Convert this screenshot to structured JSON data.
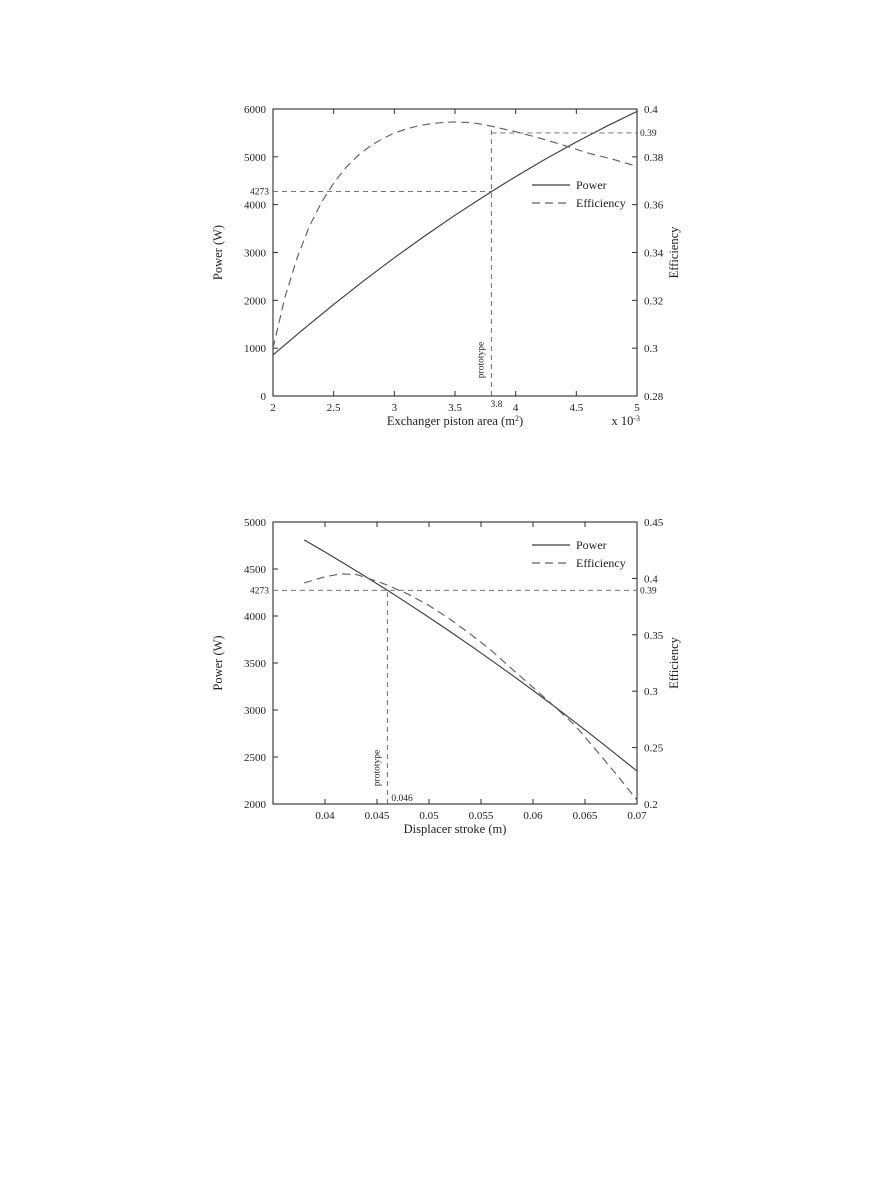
{
  "colors": {
    "axis": "#2f2f2f",
    "solid_line": "#3d3d3d",
    "dashed_line": "#606060",
    "text": "#1e1e1e",
    "background": "#ffffff"
  },
  "chart_data": [
    {
      "type": "line",
      "title": "",
      "xlabel_parts": [
        {
          "t": "Exchanger piston area (m"
        },
        {
          "t": "2",
          "sup": true
        },
        {
          "t": ")"
        }
      ],
      "x_scale_parts": [
        {
          "t": "x 10"
        },
        {
          "t": "-3",
          "sup": true
        }
      ],
      "ylabel_left": "Power (W)",
      "ylabel_right": "Efficiency",
      "xlim": [
        2,
        5
      ],
      "ylim_left": [
        0,
        6000
      ],
      "ylim_right": [
        0.28,
        0.4
      ],
      "grid": false,
      "legend_position": "right-middle",
      "xticks": {
        "values": [
          2,
          2.5,
          3,
          3.5,
          4,
          4.5,
          5
        ],
        "labels": [
          "2",
          "2.5",
          "3",
          "3.5",
          "4",
          "4.5",
          "5"
        ]
      },
      "yticks_left": {
        "values": [
          0,
          1000,
          2000,
          3000,
          4000,
          5000,
          6000
        ],
        "labels": [
          "0",
          "1000",
          "2000",
          "3000",
          "4000",
          "5000",
          "6000"
        ]
      },
      "yticks_right": {
        "values": [
          0.28,
          0.3,
          0.32,
          0.34,
          0.36,
          0.38,
          0.4
        ],
        "labels": [
          "0.28",
          "0.3",
          "0.32",
          "0.34",
          "0.36",
          "0.38",
          "0.4"
        ]
      },
      "series": [
        {
          "name": "Power",
          "axis": "left",
          "dash": null,
          "x": [
            2,
            2.25,
            2.5,
            2.75,
            3,
            3.25,
            3.5,
            3.8,
            4,
            4.25,
            4.5,
            4.75,
            5
          ],
          "y": [
            860,
            1395,
            1916,
            2413,
            2889,
            3344,
            3779,
            4273,
            4586,
            4958,
            5310,
            5640,
            5950
          ]
        },
        {
          "name": "Efficiency",
          "axis": "right",
          "dash": "8,5",
          "x": [
            2,
            2.1,
            2.2,
            2.3,
            2.4,
            2.5,
            2.6,
            2.7,
            2.8,
            2.9,
            3,
            3.1,
            3.2,
            3.3,
            3.4,
            3.5,
            3.6,
            3.7,
            3.8,
            3.9,
            4,
            4.2,
            4.4,
            4.6,
            4.8,
            5
          ],
          "y": [
            0.3,
            0.3215,
            0.338,
            0.351,
            0.361,
            0.369,
            0.3755,
            0.3805,
            0.3845,
            0.3875,
            0.39,
            0.3917,
            0.393,
            0.3938,
            0.3944,
            0.3946,
            0.3944,
            0.3938,
            0.3928,
            0.3917,
            0.3905,
            0.3878,
            0.3848,
            0.3815,
            0.379,
            0.376
          ]
        }
      ],
      "annotations": {
        "hlines": [
          {
            "axis": "left",
            "value": 4273,
            "from_x": 2,
            "to_x": 3.8,
            "label_left": "4273"
          },
          {
            "axis": "right",
            "value": 0.39,
            "from_x": 3.8,
            "to_x": 5,
            "label_right": "0.39"
          }
        ],
        "vline": {
          "x": 3.8,
          "top_axis": "right",
          "top_value": 0.3928,
          "label": "3.8",
          "label_pos": "below",
          "rotated_text": "prototype"
        }
      }
    },
    {
      "type": "line",
      "title": "",
      "xlabel_parts": [
        {
          "t": "Displacer stroke (m)"
        }
      ],
      "x_scale_parts": null,
      "ylabel_left": "Power (W)",
      "ylabel_right": "Efficiency",
      "xlim": [
        0.035,
        0.07
      ],
      "ylim_left": [
        2000,
        5000
      ],
      "ylim_right": [
        0.2,
        0.45
      ],
      "grid": false,
      "legend_position": "top-right",
      "xticks": {
        "values": [
          0.04,
          0.045,
          0.05,
          0.055,
          0.06,
          0.065,
          0.07
        ],
        "labels": [
          "0.04",
          "0.045",
          "0.05",
          "0.055",
          "0.06",
          "0.065",
          "0.07"
        ]
      },
      "yticks_left": {
        "values": [
          2000,
          2500,
          3000,
          3500,
          4000,
          4500,
          5000
        ],
        "labels": [
          "2000",
          "2500",
          "3000",
          "3500",
          "4000",
          "4500",
          "5000"
        ]
      },
      "yticks_right": {
        "values": [
          0.2,
          0.25,
          0.3,
          0.35,
          0.4,
          0.45
        ],
        "labels": [
          "0.2",
          "0.25",
          "0.3",
          "0.35",
          "0.4",
          "0.45"
        ]
      },
      "series": [
        {
          "name": "Power",
          "axis": "left",
          "dash": null,
          "x": [
            0.038,
            0.04,
            0.042,
            0.044,
            0.046,
            0.048,
            0.05,
            0.052,
            0.054,
            0.056,
            0.058,
            0.06,
            0.062,
            0.064,
            0.066,
            0.068,
            0.07
          ],
          "y": [
            4810,
            4681,
            4548,
            4412,
            4273,
            4131,
            3985,
            3836,
            3684,
            3529,
            3370,
            3208,
            3043,
            2875,
            2703,
            2528,
            2350
          ]
        },
        {
          "name": "Efficiency",
          "axis": "right",
          "dash": "8,5",
          "x": [
            0.038,
            0.04,
            0.0415,
            0.043,
            0.045,
            0.046,
            0.048,
            0.05,
            0.052,
            0.054,
            0.056,
            0.058,
            0.06,
            0.062,
            0.064,
            0.066,
            0.068,
            0.07
          ],
          "y": [
            0.396,
            0.4015,
            0.404,
            0.4035,
            0.3975,
            0.394,
            0.386,
            0.376,
            0.364,
            0.3505,
            0.336,
            0.3195,
            0.3035,
            0.287,
            0.27,
            0.2485,
            0.2265,
            0.2035
          ]
        }
      ],
      "annotations": {
        "hlines": [
          {
            "axis": "left",
            "value": 4273,
            "from_x": 0.035,
            "to_x": 0.07,
            "label_left": "4273",
            "label_right": "0.39"
          }
        ],
        "vline": {
          "x": 0.046,
          "top_axis": "left",
          "top_value": 4273,
          "label": "0.046",
          "label_pos": "inside",
          "rotated_text": "prototype"
        }
      }
    }
  ]
}
